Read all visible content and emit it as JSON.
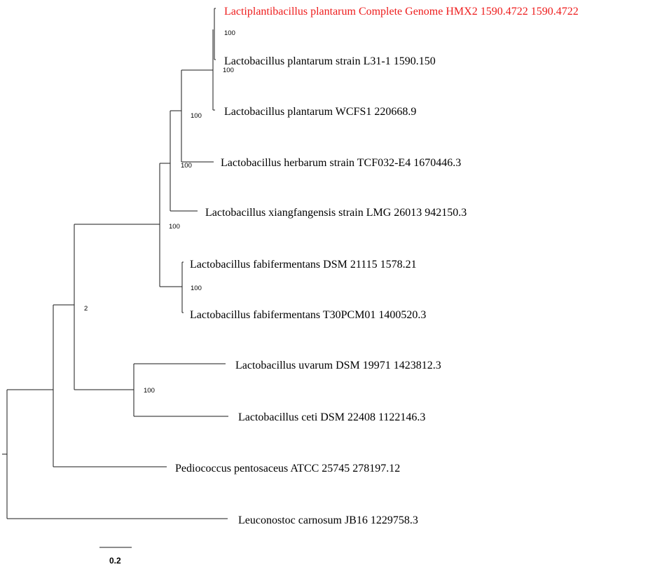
{
  "tree": {
    "taxa": [
      {
        "id": "t1",
        "label": "Lactiplantibacillus plantarum Complete Genome HMX2 1590.4722 1590.4722",
        "highlight": true
      },
      {
        "id": "t2",
        "label": "Lactobacillus plantarum strain L31-1 1590.150",
        "highlight": false
      },
      {
        "id": "t3",
        "label": "Lactobacillus plantarum WCFS1 220668.9",
        "highlight": false
      },
      {
        "id": "t4",
        "label": "Lactobacillus herbarum strain TCF032-E4 1670446.3",
        "highlight": false
      },
      {
        "id": "t5",
        "label": "Lactobacillus xiangfangensis strain LMG 26013 942150.3",
        "highlight": false
      },
      {
        "id": "t6",
        "label": "Lactobacillus fabifermentans DSM 21115 1578.21",
        "highlight": false
      },
      {
        "id": "t7",
        "label": "Lactobacillus fabifermentans T30PCM01 1400520.3",
        "highlight": false
      },
      {
        "id": "t8",
        "label": "Lactobacillus uvarum DSM 19971 1423812.3",
        "highlight": false
      },
      {
        "id": "t9",
        "label": "Lactobacillus ceti DSM 22408 1122146.3",
        "highlight": false
      },
      {
        "id": "t10",
        "label": "Pediococcus pentosaceus ATCC 25745 278197.12",
        "highlight": false
      },
      {
        "id": "t11",
        "label": "Leuconostoc carnosum JB16 1229758.3",
        "highlight": false
      }
    ],
    "support_values": [
      {
        "node": "n_t1_t2",
        "value": "100"
      },
      {
        "node": "n_t1_t3",
        "value": "100"
      },
      {
        "node": "n_t1_t4",
        "value": "100"
      },
      {
        "node": "n_t1_t5",
        "value": "100"
      },
      {
        "node": "n_t1_t7",
        "value": "100"
      },
      {
        "node": "n_t6_t7",
        "value": "100"
      },
      {
        "node": "n_t1_t9",
        "value": "2"
      },
      {
        "node": "n_t8_t9",
        "value": "100"
      }
    ],
    "scale_bar": {
      "label": "0.2"
    },
    "colors": {
      "highlight": "#ee1c1c",
      "branch": "#1a1a1a",
      "text": "#000000"
    }
  }
}
